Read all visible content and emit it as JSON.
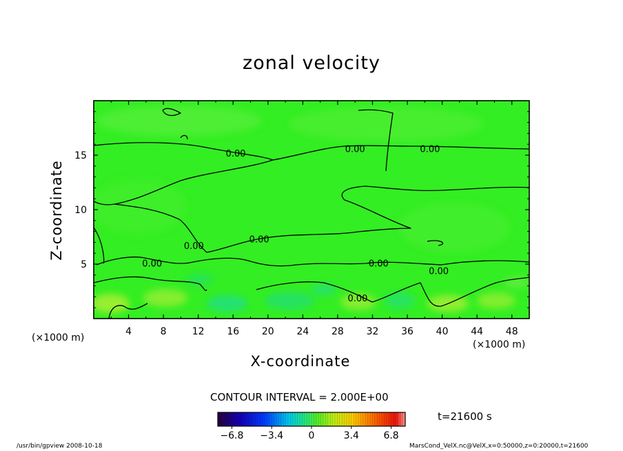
{
  "footer": {
    "program": "/usr/bin/gpview   2008-10-18",
    "source": "MarsCond_VelX.nc@VelX,x=0:50000,z=0:20000,t=21600"
  },
  "colors": {
    "field_base": "#33ee22",
    "field_light": "#66ee44",
    "field_yellow": "#aaee33",
    "field_cyan": "#22dd88",
    "contour": "#000000"
  },
  "chart_data": {
    "type": "heatmap",
    "title": "zonal velocity",
    "xlabel": "X-coordinate",
    "ylabel": "Z-coordinate",
    "x_unit_label": "(×1000 m)",
    "y_unit_label": "(×1000 m)",
    "xlim": [
      0,
      50
    ],
    "ylim": [
      0,
      20
    ],
    "x_ticks": [
      4,
      8,
      12,
      16,
      20,
      24,
      28,
      32,
      36,
      40,
      44,
      48
    ],
    "y_ticks": [
      5,
      10,
      15
    ],
    "grid": false,
    "contour_interval_text": "CONTOUR INTERVAL = 2.000E+00",
    "time_text": "t=21600 s",
    "contour_labels": [
      {
        "text": "0.00",
        "x": 16.3,
        "z": 15.2
      },
      {
        "text": "0.00",
        "x": 30.0,
        "z": 15.6
      },
      {
        "text": "0.00",
        "x": 38.6,
        "z": 15.6
      },
      {
        "text": "0.00",
        "x": 19.0,
        "z": 7.3
      },
      {
        "text": "0.00",
        "x": 11.5,
        "z": 6.7
      },
      {
        "text": "0.00",
        "x": 6.7,
        "z": 5.1
      },
      {
        "text": "0.00",
        "x": 32.7,
        "z": 5.1
      },
      {
        "text": "0.00",
        "x": 39.6,
        "z": 4.4
      },
      {
        "text": "0.00",
        "x": 30.3,
        "z": 1.9
      }
    ],
    "colorbar": {
      "ticks": [
        -6.8,
        -3.4,
        0,
        3.4,
        6.8
      ],
      "tick_labels": [
        "−6.8",
        "−3.4",
        "0",
        "3.4",
        "6.8"
      ],
      "range": [
        -8,
        8
      ]
    }
  }
}
